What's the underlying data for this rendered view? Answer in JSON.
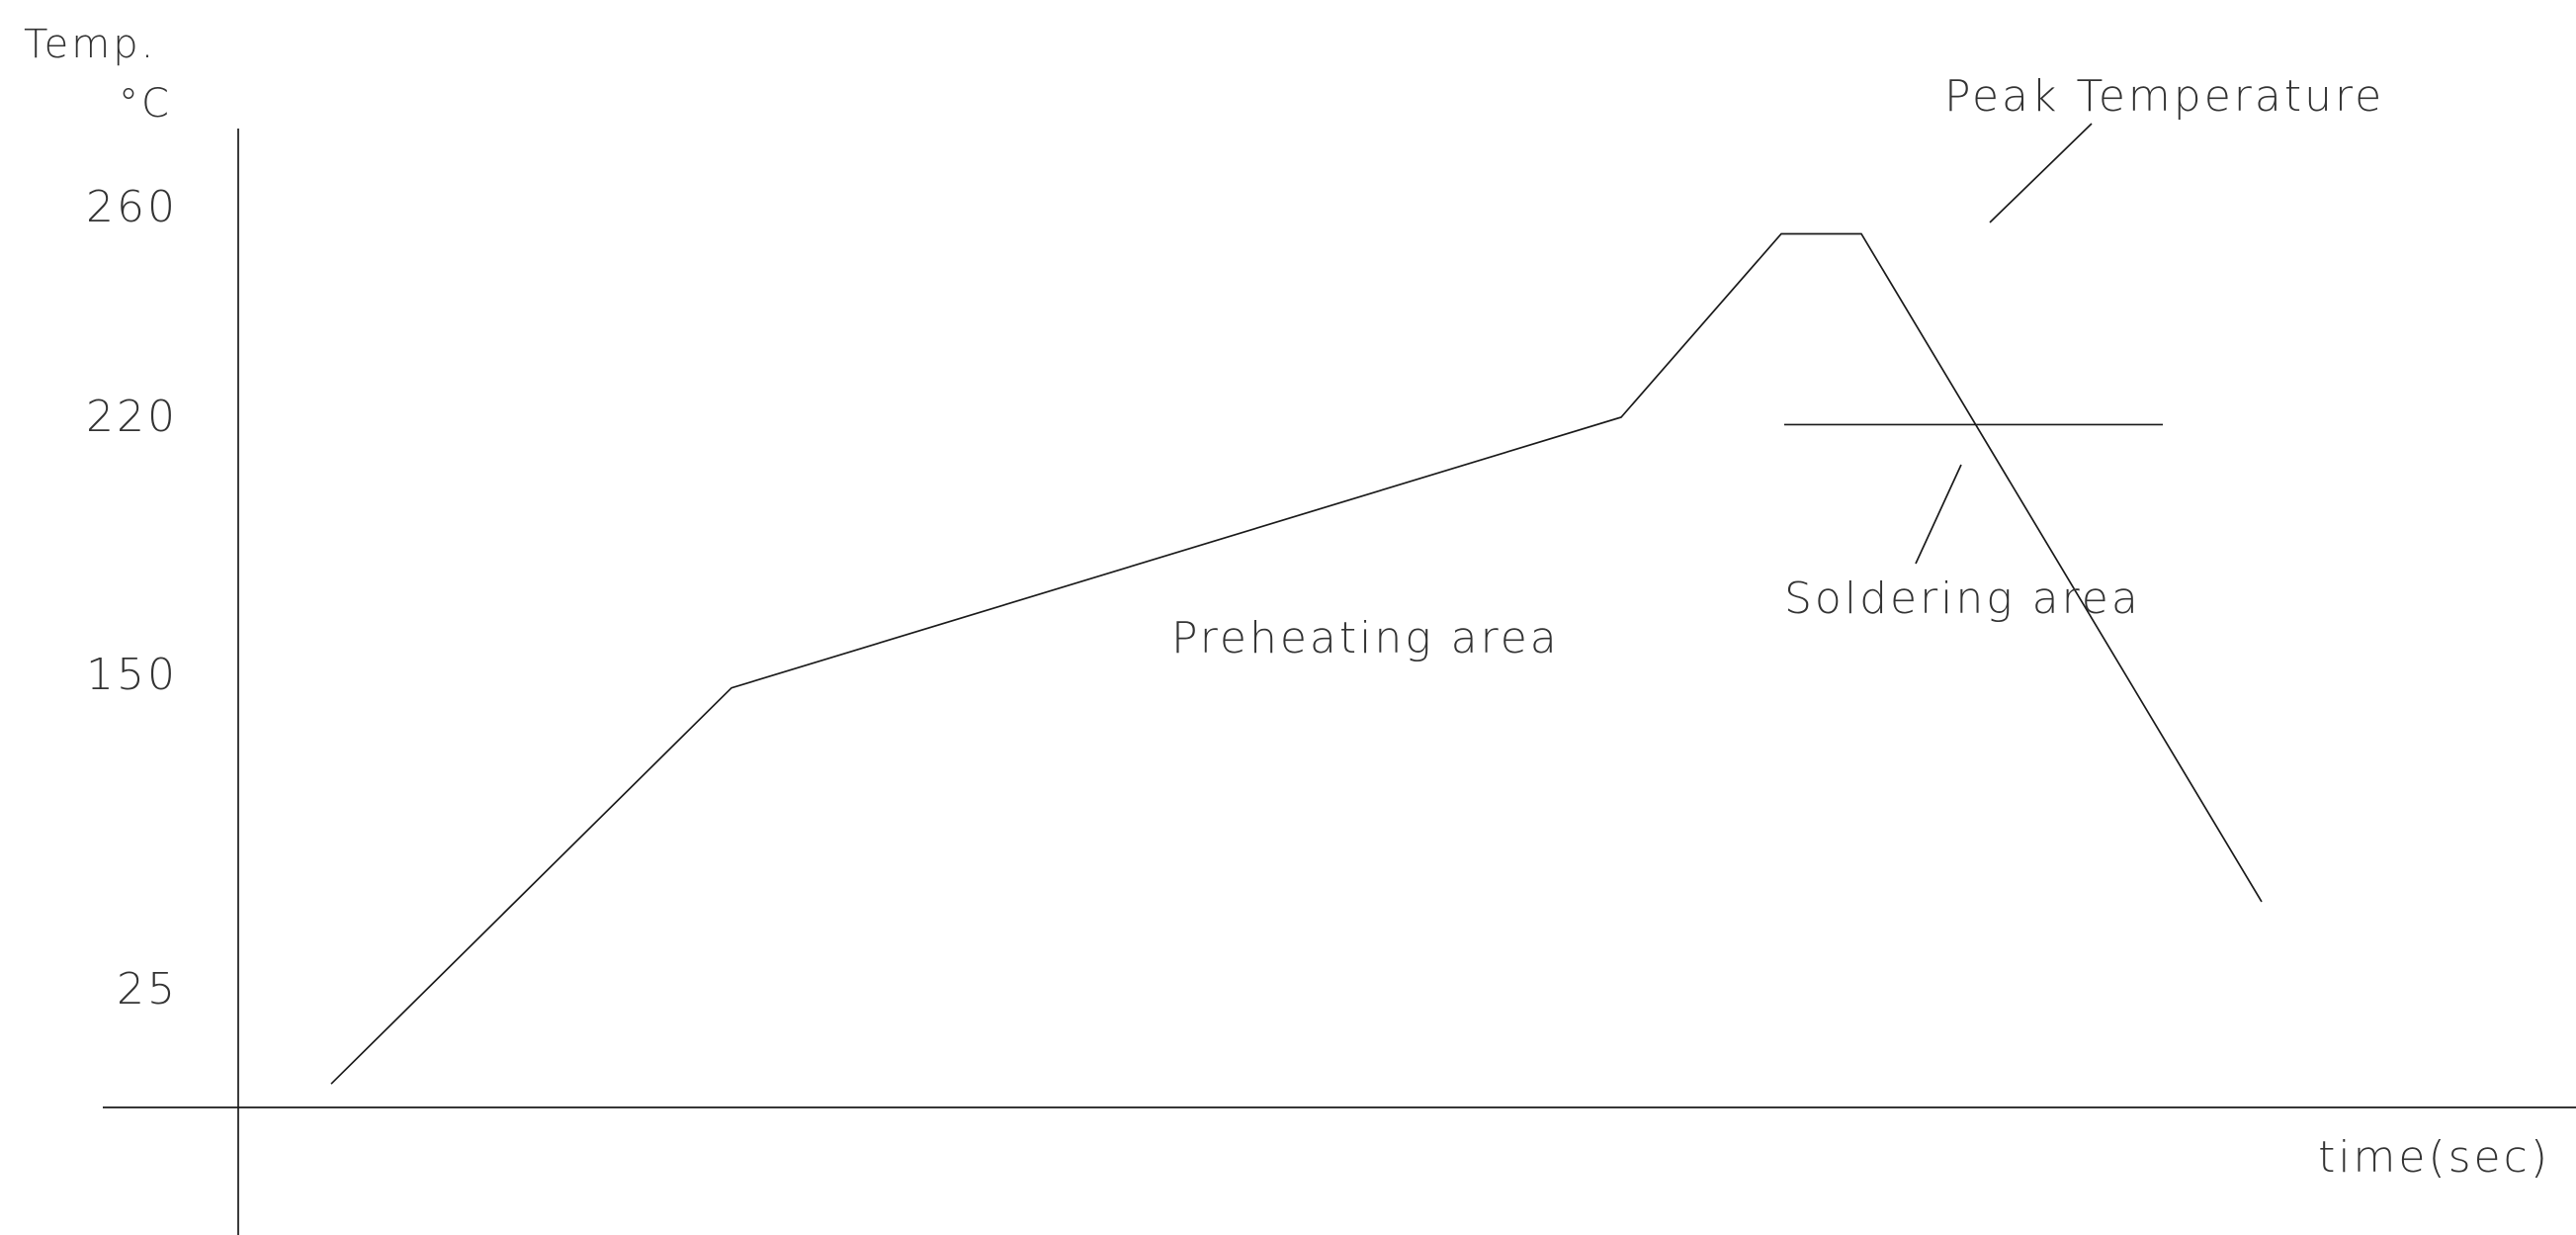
{
  "chart_data": {
    "type": "line",
    "title": "",
    "xlabel": "time(sec)",
    "ylabel": "Temp.",
    "yunit": "°C",
    "yticks": [
      25,
      150,
      220,
      260
    ],
    "grid": false,
    "legend": "none",
    "series": [
      {
        "x": [
          0,
          45,
          145,
          163,
          172,
          217
        ],
        "y": [
          5,
          145,
          220,
          255,
          255,
          60
        ]
      }
    ],
    "annotations": [
      {
        "text": "Peak Temperature",
        "leader_from": [
          178,
          300
        ]
      },
      {
        "text": "Preheating area"
      },
      {
        "text": "Soldering area"
      }
    ],
    "soldering_threshold": 218
  }
}
